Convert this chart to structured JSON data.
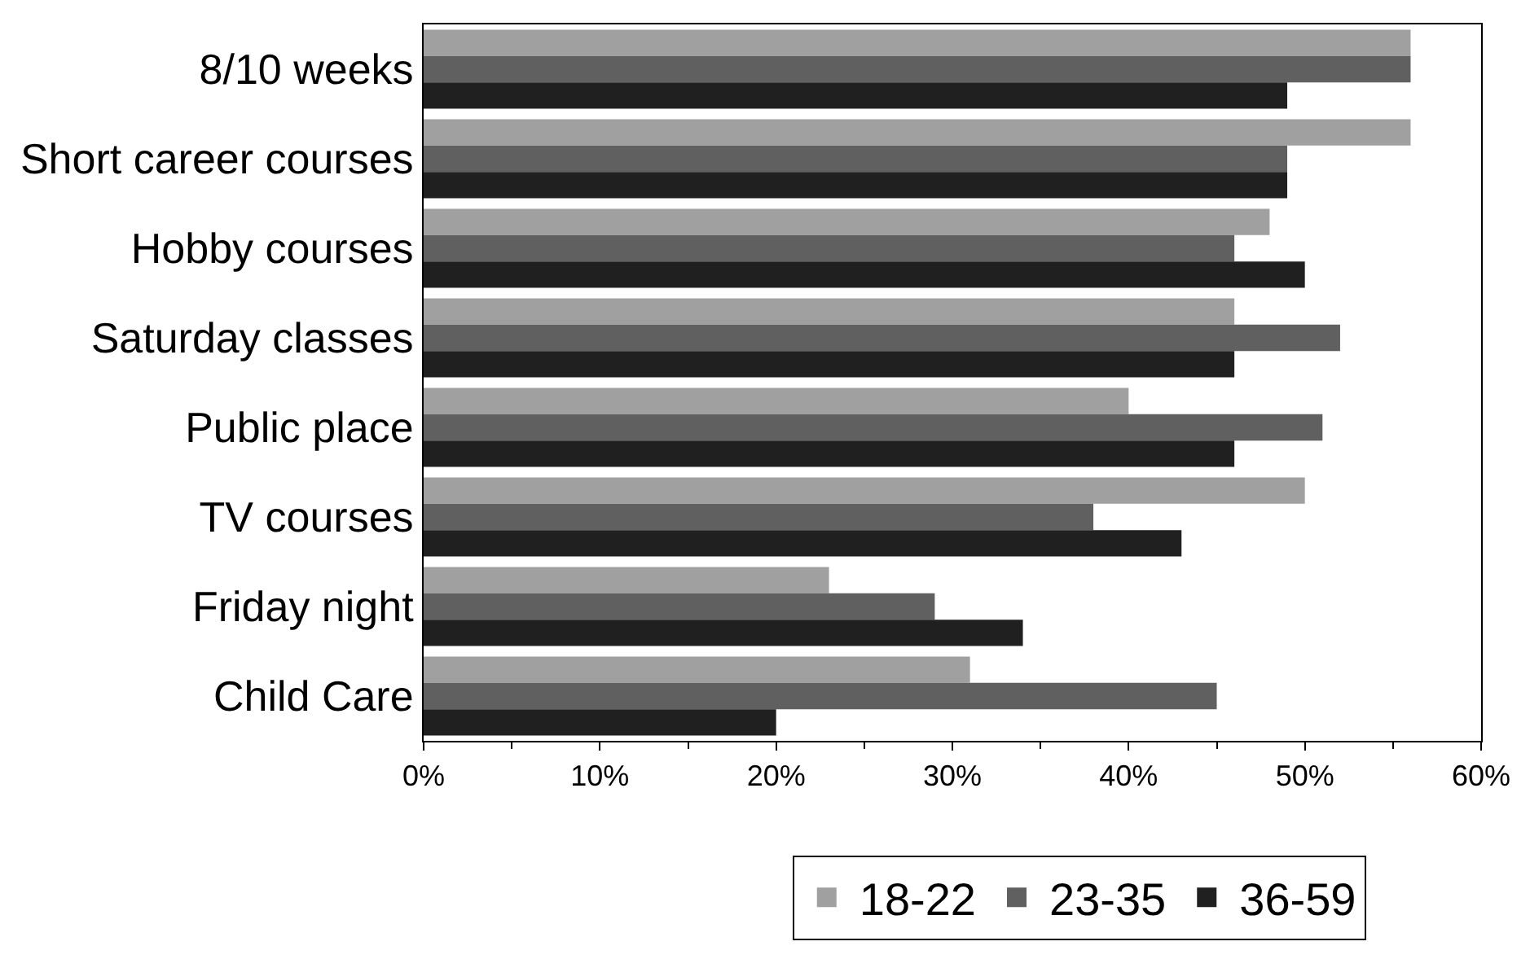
{
  "chart_data": {
    "type": "bar",
    "orientation": "horizontal",
    "categories": [
      "8/10 weeks",
      "Short career courses",
      "Hobby courses",
      "Saturday classes",
      "Public place",
      "TV courses",
      "Friday night",
      "Child Care"
    ],
    "series": [
      {
        "name": "18-22",
        "color": "#a0a0a0",
        "values": [
          56,
          56,
          48,
          46,
          40,
          50,
          23,
          31
        ]
      },
      {
        "name": "23-35",
        "color": "#606060",
        "values": [
          56,
          49,
          46,
          52,
          51,
          38,
          29,
          45
        ]
      },
      {
        "name": "36-59",
        "color": "#202020",
        "values": [
          49,
          49,
          50,
          46,
          46,
          43,
          34,
          20
        ]
      }
    ],
    "xlim": [
      0,
      60
    ],
    "xticks": [
      {
        "value": 0,
        "label": "0%"
      },
      {
        "value": 10,
        "label": "10%"
      },
      {
        "value": 20,
        "label": "20%"
      },
      {
        "value": 30,
        "label": "30%"
      },
      {
        "value": 40,
        "label": "40%"
      },
      {
        "value": 50,
        "label": "50%"
      },
      {
        "value": 60,
        "label": "60%"
      }
    ],
    "legend": "bottom"
  }
}
